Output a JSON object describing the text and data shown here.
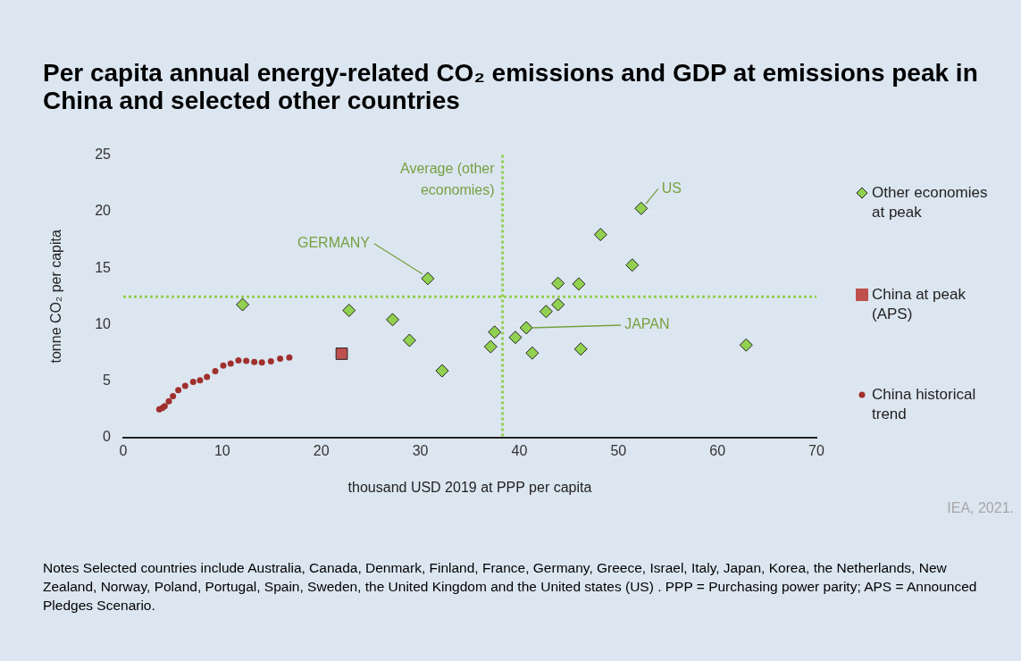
{
  "chart_data": {
    "type": "scatter",
    "title": "Per capita annual energy-related CO₂ emissions and GDP at emissions peak in China and selected other countries",
    "xlabel": "thousand USD 2019 at PPP per capita",
    "ylabel": "tonne CO₂ per capita",
    "xlim": [
      0,
      70
    ],
    "xticks": [
      0,
      10,
      20,
      30,
      40,
      50,
      60,
      70
    ],
    "ylim": [
      0,
      25
    ],
    "yticks": [
      0,
      5,
      10,
      15,
      20,
      25
    ],
    "grid": "y",
    "legend": "right",
    "series": [
      {
        "name": "Other economies at peak",
        "color": "#92d050",
        "marker": "diamond",
        "x": [
          12.05,
          22.8,
          27.2,
          28.9,
          30.75,
          32.2,
          37.5,
          37.1,
          39.6,
          40.7,
          41.3,
          42.7,
          43.9,
          43.9,
          46.0,
          46.2,
          48.2,
          51.4,
          52.3,
          62.9
        ],
        "values": [
          11.77,
          11.26,
          10.44,
          8.61,
          14.08,
          5.92,
          9.34,
          8.05,
          8.87,
          9.72,
          7.49,
          11.16,
          11.77,
          13.65,
          13.6,
          7.84,
          17.97,
          15.27,
          20.28,
          8.2
        ]
      },
      {
        "name": "China at peak (APS)",
        "color": "#c0504d",
        "marker": "square",
        "x": [
          22.06
        ],
        "values": [
          7.43
        ]
      },
      {
        "name": "China historical trend",
        "color": "#a0302d",
        "marker": "circle",
        "x": [
          3.64,
          3.94,
          4.18,
          4.6,
          5.02,
          5.56,
          6.25,
          7.06,
          7.75,
          8.45,
          9.29,
          10.1,
          10.85,
          11.63,
          12.42,
          13.23,
          14.0,
          14.91,
          15.84,
          16.77
        ],
        "values": [
          2.5,
          2.63,
          2.79,
          3.22,
          3.68,
          4.2,
          4.58,
          4.94,
          5.07,
          5.38,
          5.89,
          6.38,
          6.56,
          6.84,
          6.79,
          6.69,
          6.66,
          6.76,
          7.0,
          7.1
        ]
      }
    ],
    "ref_lines": [
      {
        "axis": "x",
        "value": 38.3,
        "label": "Average (other economies)",
        "color": "#92d050",
        "line_style": "dotted"
      },
      {
        "axis": "y",
        "value": 12.47,
        "color": "#92d050",
        "line_style": "dotted"
      }
    ],
    "annotations": [
      {
        "text": "GERMANY",
        "x": 30.75,
        "y": 14.08
      },
      {
        "text": "US",
        "x": 52.3,
        "y": 20.28
      },
      {
        "text": "JAPAN",
        "x": 40.7,
        "y": 9.72
      },
      "IEA, 2021.",
      "Notes Selected countries include Australia, Canada, Denmark, Finland, France, Germany, Greece, Israel, Italy, Japan, Korea, the Netherlands, New Zealand, Norway, Poland, Portugal, Spain, Sweden, the United Kingdom and the United states (US) . PPP = Purchasing power parity; APS = Announced Pledges Scenario."
    ]
  }
}
